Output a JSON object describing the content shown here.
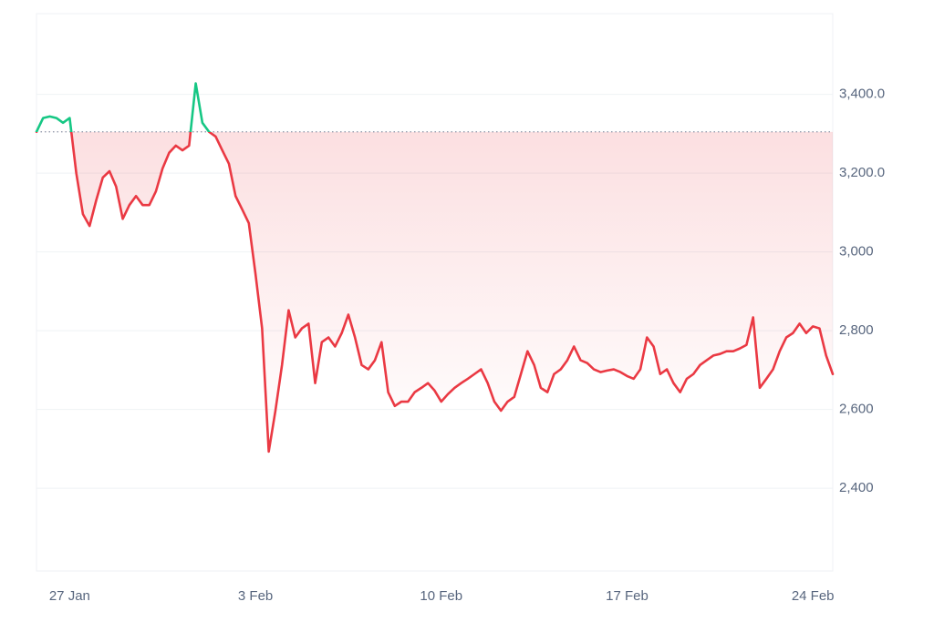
{
  "chart_data": {
    "type": "line",
    "categories": [
      null,
      null,
      null,
      null,
      null,
      "27 Jan",
      null,
      null,
      null,
      null,
      null,
      null,
      null,
      null,
      null,
      null,
      null,
      null,
      null,
      null,
      null,
      null,
      null,
      null,
      null,
      null,
      null,
      null,
      null,
      null,
      null,
      null,
      null,
      "3 Feb",
      null,
      null,
      null,
      null,
      null,
      null,
      null,
      null,
      null,
      null,
      null,
      null,
      null,
      null,
      null,
      null,
      null,
      null,
      null,
      null,
      null,
      null,
      null,
      null,
      null,
      null,
      null,
      "10 Feb",
      null,
      null,
      null,
      null,
      null,
      null,
      null,
      null,
      null,
      null,
      null,
      null,
      null,
      null,
      null,
      null,
      null,
      null,
      null,
      null,
      null,
      null,
      null,
      null,
      null,
      null,
      null,
      "17 Feb",
      null,
      null,
      null,
      null,
      null,
      null,
      null,
      null,
      null,
      null,
      null,
      null,
      null,
      null,
      null,
      null,
      null,
      null,
      null,
      null,
      null,
      null,
      null,
      null,
      null,
      null,
      null,
      "24 Feb",
      null,
      null,
      null
    ],
    "values": [
      3305,
      3340,
      3344,
      3340,
      3328,
      3340,
      3200,
      3096,
      3066,
      3131,
      3189,
      3205,
      3166,
      3084,
      3119,
      3142,
      3119,
      3119,
      3154,
      3212,
      3252,
      3270,
      3258,
      3270,
      3428,
      3328,
      3305,
      3293,
      3258,
      3224,
      3142,
      3108,
      3073,
      2945,
      2806,
      2493,
      2596,
      2713,
      2852,
      2783,
      2806,
      2818,
      2667,
      2771,
      2783,
      2760,
      2794,
      2841,
      2783,
      2713,
      2702,
      2725,
      2771,
      2644,
      2609,
      2620,
      2620,
      2644,
      2655,
      2667,
      2648,
      2620,
      2639,
      2655,
      2667,
      2678,
      2690,
      2702,
      2667,
      2620,
      2597,
      2620,
      2632,
      2690,
      2748,
      2713,
      2655,
      2644,
      2690,
      2702,
      2725,
      2760,
      2725,
      2718,
      2702,
      2695,
      2699,
      2702,
      2695,
      2685,
      2678,
      2702,
      2783,
      2760,
      2690,
      2702,
      2667,
      2644,
      2678,
      2690,
      2713,
      2725,
      2737,
      2741,
      2748,
      2748,
      2755,
      2764,
      2834,
      2655,
      2678,
      2702,
      2748,
      2783,
      2794,
      2818,
      2794,
      2811,
      2806,
      2737,
      2690
    ],
    "baseline": 3305,
    "color": "#ea3943",
    "up_color": "#16c784",
    "ylim": [
      2190,
      3605
    ],
    "yticks": [
      {
        "value": 3400,
        "label": "3,400.0"
      },
      {
        "value": 3200,
        "label": "3,200.0"
      },
      {
        "value": 3000,
        "label": "3,000"
      },
      {
        "value": 2800,
        "label": "2,800"
      },
      {
        "value": 2600,
        "label": "2,600"
      },
      {
        "value": 2400,
        "label": "2,400"
      }
    ],
    "grid": true
  }
}
